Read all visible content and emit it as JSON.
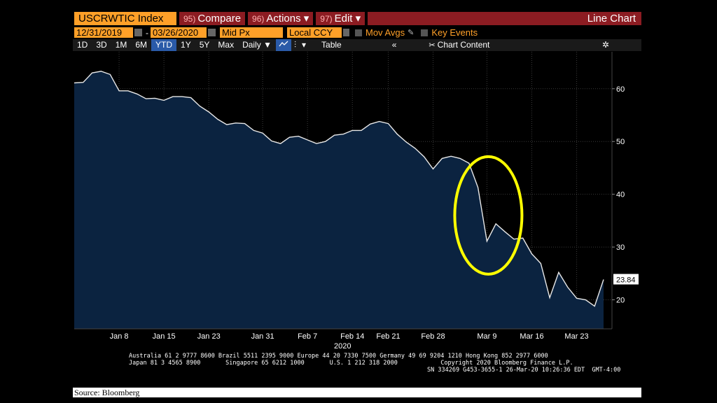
{
  "header": {
    "ticker": "USCRWTIC Index",
    "compare_num": "95)",
    "compare_label": "Compare",
    "actions_num": "96)",
    "actions_label": "Actions ▾",
    "edit_num": "97)",
    "edit_label": "Edit ▾",
    "view_title": "Line Chart"
  },
  "controls": {
    "start_date": "12/31/2019",
    "end_date": "03/26/2020",
    "dash": "-",
    "field": "Mid Px",
    "currency": "Local CCY",
    "mov_avgs": "Mov Avgs",
    "key_events": "Key Events"
  },
  "toolbar": {
    "periods": [
      "1D",
      "3D",
      "1M",
      "6M",
      "YTD",
      "1Y",
      "5Y",
      "Max"
    ],
    "active_period": "YTD",
    "frequency": "Daily ▼",
    "table": "Table",
    "collapse": "«",
    "chart_content": "Chart Content",
    "settings_icon": "gear-icon"
  },
  "chart_data": {
    "type": "area",
    "x": [
      "Dec 31",
      "Jan 2",
      "Jan 3",
      "Jan 6",
      "Jan 7",
      "Jan 8",
      "Jan 9",
      "Jan 10",
      "Jan 13",
      "Jan 14",
      "Jan 15",
      "Jan 16",
      "Jan 17",
      "Jan 21",
      "Jan 22",
      "Jan 23",
      "Jan 24",
      "Jan 27",
      "Jan 28",
      "Jan 29",
      "Jan 30",
      "Jan 31",
      "Feb 3",
      "Feb 4",
      "Feb 5",
      "Feb 6",
      "Feb 7",
      "Feb 10",
      "Feb 11",
      "Feb 12",
      "Feb 13",
      "Feb 14",
      "Feb 18",
      "Feb 19",
      "Feb 20",
      "Feb 21",
      "Feb 24",
      "Feb 25",
      "Feb 26",
      "Feb 27",
      "Feb 28",
      "Mar 2",
      "Mar 3",
      "Mar 4",
      "Mar 5",
      "Mar 6",
      "Mar 9",
      "Mar 10",
      "Mar 11",
      "Mar 12",
      "Mar 13",
      "Mar 16",
      "Mar 17",
      "Mar 18",
      "Mar 19",
      "Mar 20",
      "Mar 23",
      "Mar 24",
      "Mar 25",
      "Mar 26"
    ],
    "values": [
      61.1,
      61.2,
      63.0,
      63.3,
      62.7,
      59.6,
      59.6,
      59.0,
      58.1,
      58.2,
      57.8,
      58.5,
      58.5,
      58.3,
      56.7,
      55.6,
      54.2,
      53.2,
      53.5,
      53.4,
      52.1,
      51.6,
      50.1,
      49.6,
      50.8,
      51.0,
      50.3,
      49.6,
      50.0,
      51.2,
      51.4,
      52.1,
      52.1,
      53.3,
      53.8,
      53.4,
      51.4,
      49.9,
      48.7,
      47.1,
      44.8,
      46.8,
      47.2,
      46.8,
      45.9,
      41.3,
      31.1,
      34.4,
      32.9,
      31.5,
      31.7,
      28.7,
      26.9,
      20.4,
      25.2,
      22.4,
      20.3,
      20.0,
      18.8,
      23.84
    ],
    "x_ticks": [
      {
        "label": "Jan 8",
        "i": 5
      },
      {
        "label": "Jan 15",
        "i": 10
      },
      {
        "label": "Jan 23",
        "i": 15
      },
      {
        "label": "Jan 31",
        "i": 21
      },
      {
        "label": "Feb 7",
        "i": 26
      },
      {
        "label": "Feb 14",
        "i": 31
      },
      {
        "label": "Feb 21",
        "i": 35
      },
      {
        "label": "Feb 28",
        "i": 40
      },
      {
        "label": "Mar 9",
        "i": 46
      },
      {
        "label": "Mar 16",
        "i": 51
      },
      {
        "label": "Mar 23",
        "i": 56
      }
    ],
    "year_label": "2020",
    "y_ticks": [
      20,
      30,
      40,
      50,
      60
    ],
    "ylim": [
      14.5,
      67
    ],
    "last_value_label": "23.84",
    "annotation": "yellow ellipse highlighting Mar 9 drop",
    "colors": {
      "fill": "#0b2340",
      "line": "#e8e8e8",
      "annotation": "#ffff00",
      "grid": "#3a3a3a"
    }
  },
  "footer": {
    "line1": "Australia 61 2 9777 8600 Brazil 5511 2395 9000 Europe 44 20 7330 7500 Germany 49 69 9204 1210 Hong Kong 852 2977 6000",
    "line2": "Japan 81 3 4565 8900       Singapore 65 6212 1000       U.S. 1 212 318 2000            Copyright 2020 Bloomberg Finance L.P.",
    "line3": "SN 334269 G453-3655-1 26-Mar-20 10:26:36 EDT  GMT-4:00"
  },
  "source": "Source: Bloomberg"
}
